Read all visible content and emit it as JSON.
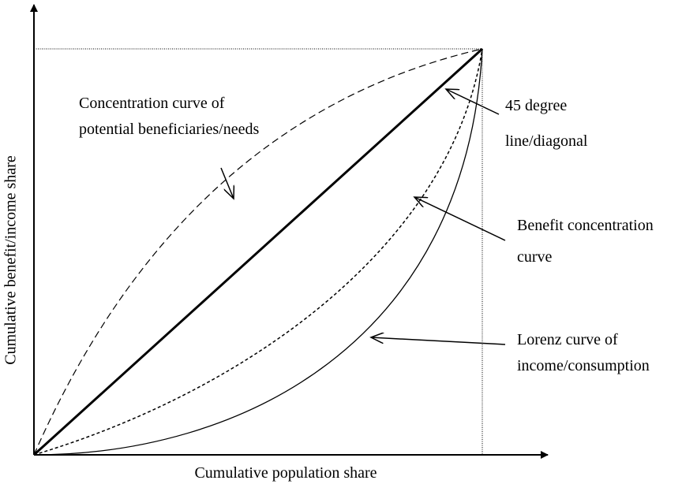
{
  "x_axis_label": "Cumulative population share",
  "y_axis_label": "Cumulative benefit/income share",
  "annotations": [
    {
      "lines": [
        "Concentration curve of",
        "potential beneficiaries/needs"
      ]
    },
    {
      "lines": [
        "45 degree",
        "line/diagonal"
      ]
    },
    {
      "lines": [
        "Benefit concentration",
        "curve"
      ]
    },
    {
      "lines": [
        "Lorenz curve of",
        "income/consumption"
      ]
    }
  ]
}
